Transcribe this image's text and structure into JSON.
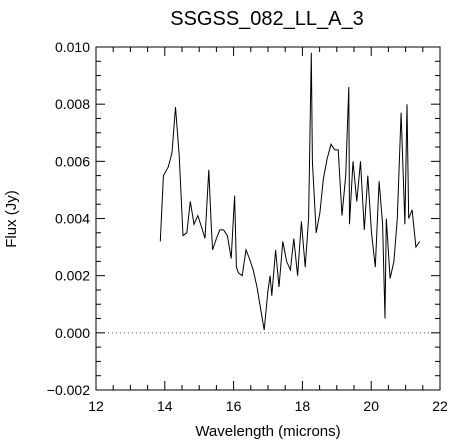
{
  "chart_data": {
    "type": "line",
    "title": "SSGSS_082_LL_A_3",
    "xlabel": "Wavelength (microns)",
    "ylabel": "Flux (Jy)",
    "xlim": [
      12,
      22
    ],
    "ylim": [
      -0.002,
      0.01
    ],
    "x_ticks": [
      12,
      14,
      16,
      18,
      20,
      22
    ],
    "y_ticks": [
      -0.002,
      0.0,
      0.002,
      0.004,
      0.006,
      0.008,
      0.01
    ],
    "x_tick_labels": [
      "12",
      "14",
      "16",
      "18",
      "20",
      "22"
    ],
    "y_tick_labels": [
      "−0.002",
      "0.000",
      "0.002",
      "0.004",
      "0.006",
      "0.008",
      "0.010"
    ],
    "zero_line": {
      "y": 0.0,
      "style": "dotted"
    },
    "grid": false,
    "series": [
      {
        "color": "#000000",
        "x": [
          13.87,
          13.96,
          14.1,
          14.21,
          14.31,
          14.42,
          14.53,
          14.64,
          14.74,
          14.85,
          14.96,
          15.07,
          15.17,
          15.28,
          15.35,
          15.39,
          15.5,
          15.6,
          15.71,
          15.82,
          15.93,
          16.03,
          16.08,
          16.14,
          16.25,
          16.36,
          16.46,
          16.57,
          16.68,
          16.79,
          16.89,
          17.0,
          17.06,
          17.11,
          17.22,
          17.32,
          17.43,
          17.54,
          17.65,
          17.75,
          17.86,
          17.97,
          18.08,
          18.18,
          18.26,
          18.29,
          18.4,
          18.51,
          18.61,
          18.72,
          18.83,
          18.94,
          19.04,
          19.15,
          19.26,
          19.35,
          19.37,
          19.47,
          19.58,
          19.69,
          19.8,
          19.9,
          20.01,
          20.12,
          20.23,
          20.33,
          20.4,
          20.44,
          20.55,
          20.66,
          20.76,
          20.87,
          20.98,
          21.04,
          21.09,
          21.19,
          21.3,
          21.41
        ],
        "y": [
          0.0032,
          0.0055,
          0.0058,
          0.0063,
          0.0079,
          0.0062,
          0.0034,
          0.0035,
          0.0046,
          0.0038,
          0.0041,
          0.0037,
          0.0033,
          0.0057,
          0.0038,
          0.0029,
          0.0033,
          0.0036,
          0.0036,
          0.0034,
          0.0026,
          0.0048,
          0.0023,
          0.0021,
          0.002,
          0.0029,
          0.0026,
          0.0022,
          0.0016,
          0.0008,
          0.0001,
          0.0015,
          0.002,
          0.0013,
          0.0029,
          0.0016,
          0.0032,
          0.0025,
          0.0022,
          0.0033,
          0.002,
          0.0039,
          0.0023,
          0.004,
          0.0098,
          0.006,
          0.0035,
          0.0042,
          0.0054,
          0.0061,
          0.0066,
          0.0064,
          0.0064,
          0.0041,
          0.0055,
          0.0086,
          0.0038,
          0.006,
          0.0046,
          0.006,
          0.0036,
          0.0055,
          0.0035,
          0.0023,
          0.0053,
          0.0038,
          0.0005,
          0.004,
          0.0019,
          0.0025,
          0.004,
          0.0077,
          0.0038,
          0.008,
          0.004,
          0.0043,
          0.003,
          0.0032
        ]
      }
    ]
  }
}
